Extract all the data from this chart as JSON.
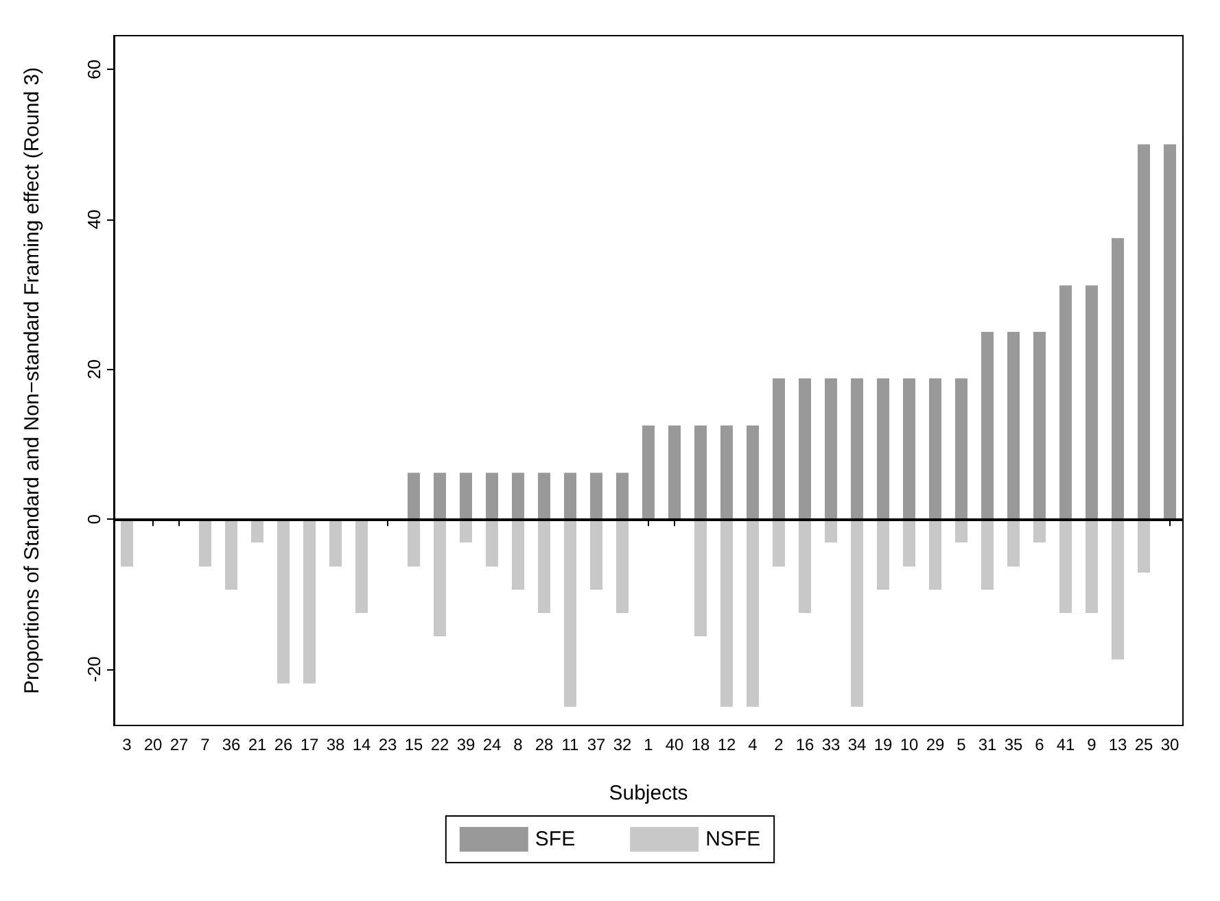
{
  "chart_data": {
    "type": "bar",
    "xlabel": "Subjects",
    "ylabel": "Proportions of Standard and Non−standard Framing effect (Round 3)",
    "categories": [
      "3",
      "20",
      "27",
      "7",
      "36",
      "21",
      "26",
      "17",
      "38",
      "14",
      "23",
      "15",
      "22",
      "39",
      "24",
      "8",
      "28",
      "11",
      "37",
      "32",
      "1",
      "40",
      "18",
      "12",
      "4",
      "2",
      "16",
      "33",
      "34",
      "19",
      "10",
      "29",
      "5",
      "31",
      "35",
      "6",
      "41",
      "9",
      "13",
      "25",
      "30"
    ],
    "series": [
      {
        "name": "SFE",
        "color": "#999999",
        "values": [
          null,
          null,
          null,
          null,
          null,
          null,
          null,
          null,
          null,
          null,
          null,
          6.2,
          6.2,
          6.2,
          6.2,
          6.2,
          6.2,
          6.2,
          6.2,
          6.2,
          12.5,
          12.5,
          12.5,
          12.5,
          12.5,
          18.8,
          18.8,
          18.8,
          18.8,
          18.8,
          18.8,
          18.8,
          18.8,
          25,
          25,
          25,
          31.2,
          31.2,
          37.5,
          50,
          50
        ]
      },
      {
        "name": "NSFE",
        "color": "#c8c8c8",
        "values": [
          -6.3,
          null,
          null,
          -6.3,
          -9.4,
          -3.1,
          -21.9,
          -21.9,
          -6.3,
          -12.5,
          null,
          -6.3,
          -15.6,
          -3.1,
          -6.3,
          -9.4,
          -12.5,
          -25,
          -9.4,
          -12.5,
          null,
          null,
          -15.6,
          -25,
          -25,
          -6.3,
          -12.5,
          -3.1,
          -25,
          -9.4,
          -6.3,
          -9.4,
          -3.1,
          -9.4,
          -6.3,
          -3.1,
          -12.5,
          -12.5,
          -18.7,
          -7.1,
          null
        ]
      }
    ],
    "ylim": [
      -27.5,
      64.5
    ],
    "yticks": [
      -20,
      0,
      20,
      40,
      60
    ],
    "ref_lines": [
      {
        "axis": "y",
        "value": 0,
        "color": "#000000"
      }
    ],
    "legend": "bottom",
    "grid": false,
    "stacked": true
  }
}
